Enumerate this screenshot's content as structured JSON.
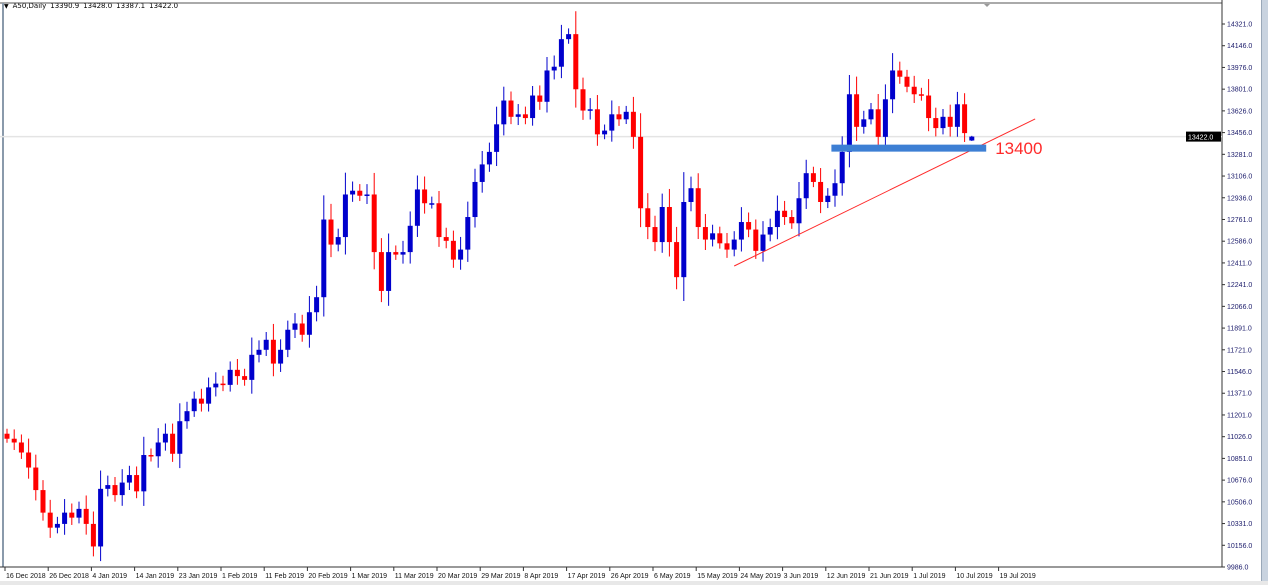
{
  "header": {
    "symbol": "A50,Daily",
    "open": "13390.9",
    "high": "13428.0",
    "low": "13387.1",
    "close": "13422.0"
  },
  "colors": {
    "up": "#0000cc",
    "down": "#ff0000",
    "level": "#3d7fd4",
    "trend": "#ff2a2a",
    "price_line": "#e4e4e4"
  },
  "chart_data": {
    "type": "candlestick",
    "title": "A50,Daily",
    "y_range": [
      9986,
      14321
    ],
    "y_ticks": [
      "14321.0",
      "14146.0",
      "13976.0",
      "13801.0",
      "13626.0",
      "13456.0",
      "13281.0",
      "13106.0",
      "12936.0",
      "12761.0",
      "12586.0",
      "12411.0",
      "12241.0",
      "12066.0",
      "11891.0",
      "11721.0",
      "11546.0",
      "11371.0",
      "11201.0",
      "11026.0",
      "10851.0",
      "10676.0",
      "10506.0",
      "10331.0",
      "10156.0",
      "9986.0"
    ],
    "x_ticks": [
      {
        "label": "16 Dec 2018",
        "index": 0
      },
      {
        "label": "26 Dec 2018",
        "index": 6
      },
      {
        "label": "4 Jan 2019",
        "index": 12
      },
      {
        "label": "14 Jan 2019",
        "index": 18
      },
      {
        "label": "23 Jan 2019",
        "index": 24
      },
      {
        "label": "1 Feb 2019",
        "index": 30
      },
      {
        "label": "11 Feb 2019",
        "index": 36
      },
      {
        "label": "20 Feb 2019",
        "index": 42
      },
      {
        "label": "1 Mar 2019",
        "index": 48
      },
      {
        "label": "11 Mar 2019",
        "index": 54
      },
      {
        "label": "20 Mar 2019",
        "index": 60
      },
      {
        "label": "29 Mar 2019",
        "index": 66
      },
      {
        "label": "8 Apr 2019",
        "index": 72
      },
      {
        "label": "17 Apr 2019",
        "index": 78
      },
      {
        "label": "26 Apr 2019",
        "index": 84
      },
      {
        "label": "6 May 2019",
        "index": 90
      },
      {
        "label": "15 May 2019",
        "index": 96
      },
      {
        "label": "24 May 2019",
        "index": 102
      },
      {
        "label": "3 Jun 2019",
        "index": 108
      },
      {
        "label": "12 Jun 2019",
        "index": 114
      },
      {
        "label": "21 Jun 2019",
        "index": 120
      },
      {
        "label": "1 Jul 2019",
        "index": 126
      },
      {
        "label": "10 Jul 2019",
        "index": 132
      },
      {
        "label": "19 Jul 2019",
        "index": 138
      }
    ],
    "first_open": 11050,
    "closes": [
      11010,
      10980,
      10900,
      10780,
      10600,
      10420,
      10300,
      10330,
      10420,
      10380,
      10450,
      10330,
      10150,
      10610,
      10640,
      10560,
      10660,
      10720,
      10590,
      10880,
      10870,
      10980,
      11050,
      10890,
      11150,
      11230,
      11330,
      11290,
      11420,
      11450,
      11440,
      11560,
      11510,
      11480,
      11680,
      11720,
      11800,
      11610,
      11720,
      11880,
      11930,
      11840,
      12020,
      12140,
      12760,
      12560,
      12620,
      12960,
      12990,
      12950,
      12960,
      12500,
      12190,
      12500,
      12480,
      12500,
      12710,
      13000,
      12890,
      12890,
      12620,
      12590,
      12440,
      12520,
      12780,
      13060,
      13200,
      13300,
      13520,
      13710,
      13580,
      13600,
      13570,
      13750,
      13700,
      13950,
      13980,
      14200,
      14240,
      13800,
      13630,
      13640,
      13440,
      13470,
      13600,
      13560,
      13620,
      13420,
      12850,
      12700,
      12580,
      12860,
      12580,
      12300,
      12900,
      13010,
      12700,
      12600,
      12650,
      12570,
      12520,
      12600,
      12740,
      12680,
      12510,
      12640,
      12700,
      12830,
      12780,
      12730,
      12930,
      13130,
      13060,
      12900,
      12950,
      13050,
      13300,
      13760,
      13500,
      13560,
      13640,
      13420,
      13720,
      13950,
      13900,
      13820,
      13760,
      13750,
      13570,
      13490,
      13580,
      13500,
      13680,
      13450,
      13422
    ],
    "current_price": 13422.0,
    "current_price_label": "13422.0",
    "annotations": {
      "level": {
        "label": "13400",
        "price": 13330,
        "from_index": 114.5,
        "to_index": 136
      },
      "trendline": {
        "from": {
          "index": 101,
          "price": 12389
        },
        "to": {
          "index": 142.8,
          "price": 13563
        }
      }
    }
  }
}
